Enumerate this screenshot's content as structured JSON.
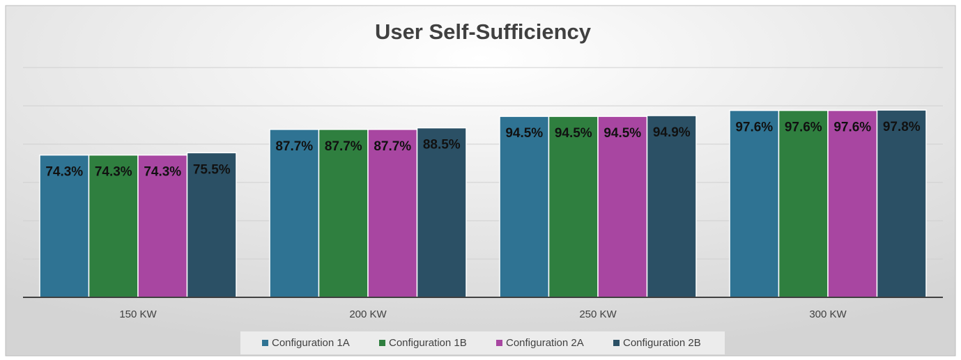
{
  "chart_data": {
    "type": "bar",
    "title": "User Self-Sufficiency",
    "categories": [
      "150 KW",
      "200 KW",
      "250 KW",
      "300 KW"
    ],
    "series": [
      {
        "name": "Configuration 1A",
        "color": "#2f7393",
        "values": [
          74.3,
          87.7,
          94.5,
          97.6
        ],
        "value_labels": [
          "74.3%",
          "87.7%",
          "94.5%",
          "97.6%"
        ]
      },
      {
        "name": "Configuration 1B",
        "color": "#2f7f3f",
        "values": [
          74.3,
          87.7,
          94.5,
          97.6
        ],
        "value_labels": [
          "74.3%",
          "87.7%",
          "94.5%",
          "97.6%"
        ]
      },
      {
        "name": "Configuration 2A",
        "color": "#a846a1",
        "values": [
          74.3,
          87.7,
          94.5,
          97.6
        ],
        "value_labels": [
          "74.3%",
          "87.7%",
          "94.5%",
          "97.6%"
        ]
      },
      {
        "name": "Configuration 2B",
        "color": "#2b5065",
        "values": [
          75.5,
          88.5,
          94.9,
          97.8
        ],
        "value_labels": [
          "75.5%",
          "88.5%",
          "94.9%",
          "97.8%"
        ]
      }
    ],
    "ylim": [
      0,
      120
    ],
    "yticks": [
      0,
      20,
      40,
      60,
      80,
      100,
      120
    ],
    "grid": true
  }
}
